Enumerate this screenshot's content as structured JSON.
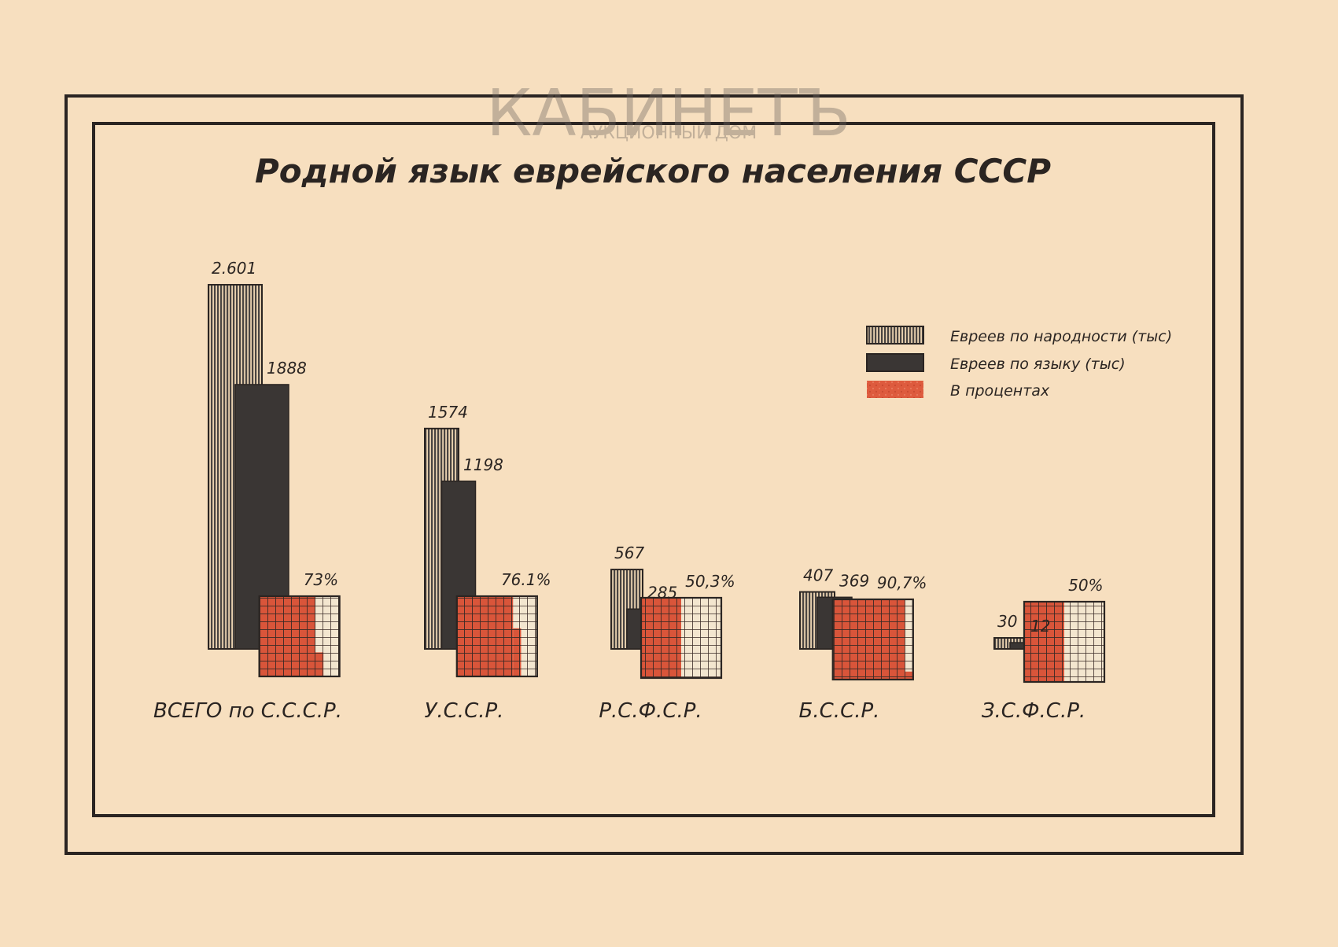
{
  "watermark": {
    "name": "КАБИНЕТЪ",
    "subtitle": "АУКЦИОННЫЙ ДОМ"
  },
  "chart_data": {
    "type": "bar",
    "title": "Родной язык еврейского населения СССР",
    "categories": [
      "ВСЕГО по С.С.С.Р.",
      "У.С.С.Р.",
      "Р.С.Ф.С.Р.",
      "Б.С.С.Р.",
      "З.С.Ф.С.Р."
    ],
    "series": [
      {
        "name": "Евреев по народности (тыс)",
        "values": [
          2601,
          1574,
          567,
          407,
          30
        ],
        "labels": [
          "2.601",
          "1574",
          "567",
          "407",
          "30"
        ],
        "color": "#4a4542",
        "pattern": "hatched"
      },
      {
        "name": "Евреев по языку (тыс)",
        "values": [
          1888,
          1198,
          285,
          369,
          12
        ],
        "labels": [
          "1888",
          "1198",
          "285",
          "369",
          "12"
        ],
        "color": "#3a3634",
        "pattern": "solid"
      },
      {
        "name": "В процентах",
        "values": [
          73,
          76.1,
          50.3,
          90.7,
          50
        ],
        "labels": [
          "73%",
          "76.1%",
          "50,3%",
          "90,7%",
          "50%"
        ],
        "color": "#d9553a",
        "pattern": "grid"
      }
    ],
    "legend_position": "right",
    "colors": {
      "paper": "#f7dfbf",
      "ink": "#2b2522",
      "red": "#d9553a"
    }
  }
}
